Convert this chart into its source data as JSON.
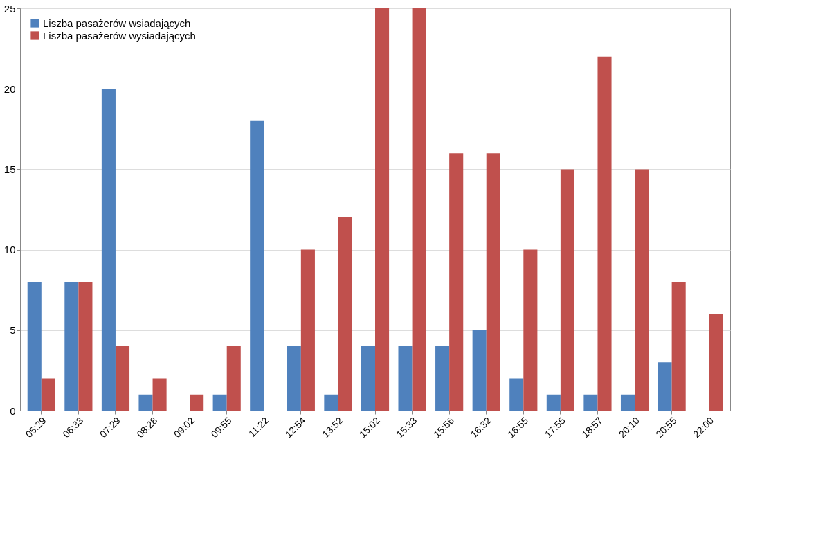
{
  "chart_data": {
    "type": "bar",
    "categories": [
      "05:29",
      "06:33",
      "07:29",
      "08:28",
      "09:02",
      "09:55",
      "11:22",
      "12:54",
      "13:52",
      "15:02",
      "15:33",
      "15:56",
      "16:32",
      "16:55",
      "17:55",
      "18:57",
      "20:10",
      "20:55",
      "22:00"
    ],
    "series": [
      {
        "name": "Liszba pasażerów wsiadających",
        "color": "#4f81bd",
        "values": [
          8,
          8,
          20,
          1,
          0,
          1,
          18,
          4,
          1,
          4,
          4,
          4,
          5,
          2,
          1,
          1,
          1,
          3,
          0
        ]
      },
      {
        "name": "Liszba pasażerów wysiadających",
        "color": "#c0504d",
        "values": [
          2,
          8,
          4,
          2,
          1,
          4,
          0,
          10,
          12,
          25,
          25,
          16,
          16,
          10,
          15,
          22,
          15,
          8,
          6
        ]
      }
    ],
    "ylim": [
      0,
      25
    ],
    "yticks": [
      0,
      5,
      10,
      15,
      20,
      25
    ],
    "grid": "y",
    "legend": "top left"
  }
}
